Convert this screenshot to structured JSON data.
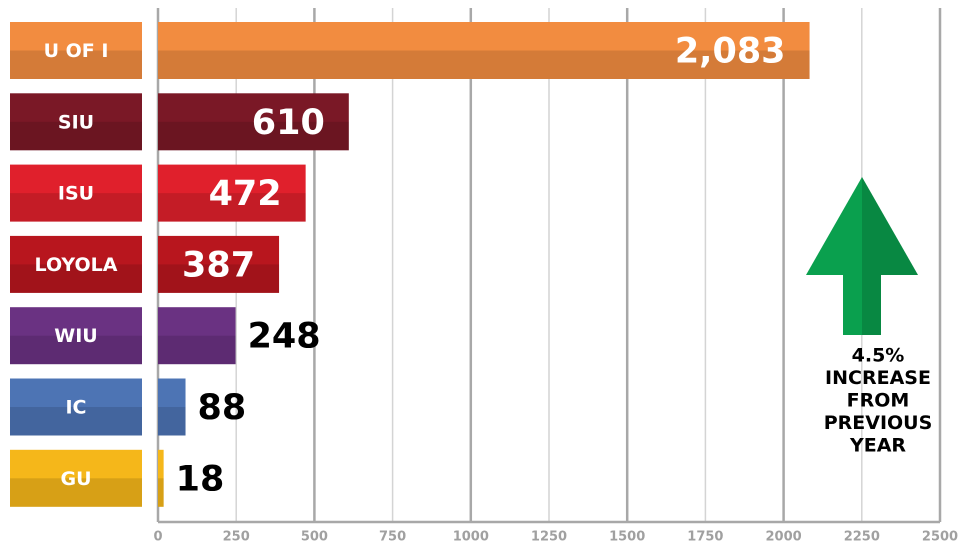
{
  "chart_data": {
    "type": "bar",
    "orientation": "horizontal",
    "categories": [
      "U OF I",
      "SIU",
      "ISU",
      "LOYOLA",
      "WIU",
      "IC",
      "GU"
    ],
    "values": [
      2083,
      610,
      472,
      387,
      248,
      88,
      18
    ],
    "value_labels": [
      "2,083",
      "610",
      "472",
      "387",
      "248",
      "88",
      "18"
    ],
    "colors": [
      "#f28c40",
      "#7a1826",
      "#e0202c",
      "#b8161e",
      "#6a3282",
      "#4d74b4",
      "#f5b71a"
    ],
    "xlim": [
      0,
      2500
    ],
    "xticks": [
      0,
      250,
      500,
      750,
      1000,
      1250,
      1500,
      1750,
      2000,
      2250,
      2500
    ],
    "grid": true,
    "annotation": [
      "4.5%",
      "INCREASE",
      "FROM",
      "PREVIOUS",
      "YEAR"
    ],
    "annotation_color": "#0aa04e"
  }
}
